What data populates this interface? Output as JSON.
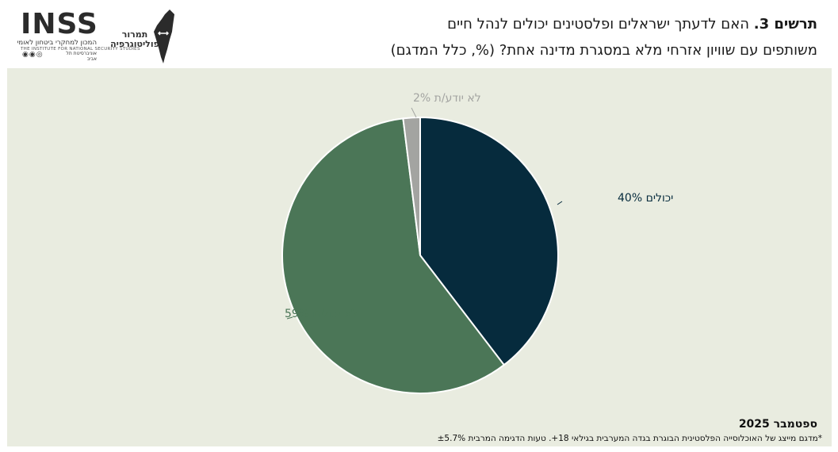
{
  "header": {
    "title_bold": "תרשים 3.",
    "title_line1": "האם לדעתך ישראלים ופלסטינים יכולים לנהל חיים",
    "title_line2": "משותפים עם שוויון אזרחי מלא במסגרת מדינה אחת? (%, כלל המדגם)"
  },
  "logos": {
    "inss_word": "INSS",
    "inss_subtitle": "המכון למחקרי ביטחון לאומי",
    "inss_english": "THE INSTITUTE FOR NATIONAL SECURITY STUDIES",
    "inss_university": "אוניברסיטת תל אביב",
    "tamrur_line1": "תמרור",
    "tamrur_line2": "פוליטוגרפיה"
  },
  "colors": {
    "background": "#e9ece0",
    "can": "#062b3d",
    "cannot": "#4b7657",
    "dontknow": "#a3a4a1"
  },
  "chart_data": {
    "type": "pie",
    "title": "האם לדעתך ישראלים ופלסטינים יכולים לנהל חיים משותפים עם שוויון אזרחי מלא במסגרת מדינה אחת? (%, כלל המדגם)",
    "slices": [
      {
        "label": "יכולים",
        "value": 40,
        "display": "יכולים 40%",
        "color": "#062b3d",
        "label_color": "#062b3d"
      },
      {
        "label": "לא יכולים",
        "value": 59,
        "display": "לא יכולים 59%",
        "color": "#4b7657",
        "label_color": "#4b7657"
      },
      {
        "label": "לא יודע/ת",
        "value": 2,
        "display": "לא יודע/ת 2%",
        "color": "#a3a4a1",
        "label_color": "#a3a4a1"
      }
    ]
  },
  "footer": {
    "date": "ספטמבר 2025",
    "note": "*מדגם מייצג של האוכלוסייה הפלסטינית הבוגרת בגדה המערבית בגילאי 18+. טעות הדגימה המרבית ±5.7%"
  }
}
